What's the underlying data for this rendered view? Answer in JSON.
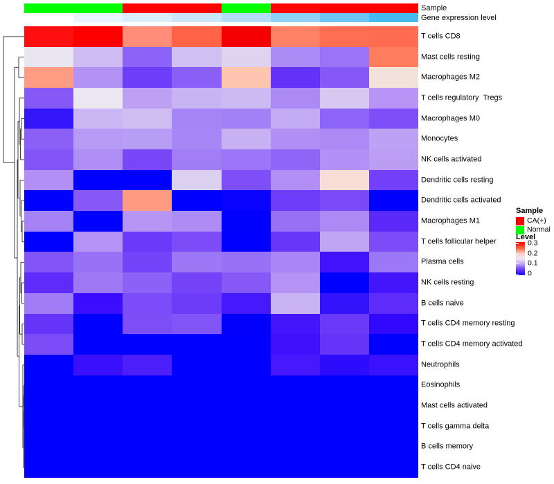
{
  "header": {
    "sample_label": "Sample",
    "gene_label": "Gene expression level"
  },
  "annotations": {
    "sample_colors": [
      "#00ff00",
      "#00ff00",
      "#ff0000",
      "#ff0000",
      "#00ff00",
      "#ff0000",
      "#ff0000",
      "#ff0000"
    ],
    "sample_groups": [
      "Normal",
      "Normal",
      "CA(+)",
      "CA(+)",
      "Normal",
      "CA(+)",
      "CA(+)",
      "CA(+)"
    ],
    "gene_expression_colors": [
      "#ffffff",
      "#e9f5fc",
      "#dbeefa",
      "#cbe5f9",
      "#b3dcf7",
      "#8fd0f5",
      "#6ec6f3",
      "#45bbf1"
    ]
  },
  "legend": {
    "sample": {
      "title": "Sample",
      "items": [
        {
          "label": "CA(+)",
          "color": "#ff0000"
        },
        {
          "label": "Normal",
          "color": "#00ff00"
        }
      ]
    },
    "level": {
      "title": "Level",
      "ticks": [
        "0.3",
        "0.2",
        "0.1",
        "0"
      ],
      "gradient": [
        "#fb0000 0%",
        "#ff6b4d 20%",
        "#fbd0c5 35%",
        "#efe9f2 50%",
        "#c4abf4 65%",
        "#7140f8 82%",
        "#1500fe 100%"
      ]
    }
  },
  "chart_data": {
    "type": "heatmap",
    "n_columns": 8,
    "column_groups": [
      "Normal",
      "Normal",
      "CA(+)",
      "CA(+)",
      "Normal",
      "CA(+)",
      "CA(+)",
      "CA(+)"
    ],
    "colormap": {
      "low": "#0000ff",
      "mid": "#ffffff",
      "high": "#ff0000",
      "domain": [
        0,
        0.3
      ],
      "white_point": 0.15
    },
    "legend_position": "right",
    "rows": [
      "T cells CD8",
      "Mast cells resting",
      "Macrophages M2",
      "T cells regulatory  Tregs",
      "Macrophages M0",
      "Monocytes",
      "NK cells activated",
      "Dendritic cells resting",
      "Dendritic cells activated",
      "Macrophages M1",
      "T cells follicular helper",
      "Plasma cells",
      "NK cells resting",
      "B cells naive",
      "T cells CD4 memory resting",
      "T cells CD4 memory activated",
      "Neutrophils",
      "Eosinophils",
      "Mast cells activated",
      "T cells gamma delta",
      "B cells memory",
      "T cells CD4 naive"
    ],
    "values": [
      [
        0.29,
        0.3,
        0.22,
        0.24,
        0.3,
        0.22,
        0.24,
        0.24
      ],
      [
        0.14,
        0.12,
        0.08,
        0.12,
        0.13,
        0.1,
        0.09,
        0.23
      ],
      [
        0.21,
        0.1,
        0.06,
        0.08,
        0.18,
        0.06,
        0.08,
        0.16
      ],
      [
        0.08,
        0.14,
        0.11,
        0.12,
        0.12,
        0.1,
        0.13,
        0.11
      ],
      [
        0.03,
        0.12,
        0.12,
        0.1,
        0.1,
        0.11,
        0.08,
        0.07
      ],
      [
        0.08,
        0.11,
        0.11,
        0.1,
        0.12,
        0.1,
        0.1,
        0.11
      ],
      [
        0.08,
        0.1,
        0.07,
        0.09,
        0.09,
        0.08,
        0.1,
        0.11
      ],
      [
        0.1,
        0.0,
        0.0,
        0.13,
        0.07,
        0.1,
        0.16,
        0.07
      ],
      [
        0.0,
        0.08,
        0.21,
        0.0,
        0.0,
        0.06,
        0.07,
        0.0
      ],
      [
        0.1,
        0.0,
        0.11,
        0.1,
        0.0,
        0.09,
        0.1,
        0.05
      ],
      [
        0.0,
        0.11,
        0.06,
        0.07,
        0.0,
        0.06,
        0.11,
        0.07
      ],
      [
        0.08,
        0.09,
        0.07,
        0.09,
        0.09,
        0.1,
        0.04,
        0.09
      ],
      [
        0.05,
        0.09,
        0.08,
        0.07,
        0.08,
        0.11,
        0.0,
        0.04
      ],
      [
        0.09,
        0.03,
        0.07,
        0.06,
        0.04,
        0.12,
        0.03,
        0.05
      ],
      [
        0.06,
        0.0,
        0.07,
        0.08,
        0.0,
        0.04,
        0.06,
        0.03
      ],
      [
        0.07,
        0.0,
        0.0,
        0.0,
        0.0,
        0.04,
        0.06,
        0.0
      ],
      [
        0.0,
        0.03,
        0.04,
        0.0,
        0.0,
        0.04,
        0.03,
        0.03
      ],
      [
        0.0,
        0.0,
        0.0,
        0.0,
        0.0,
        0.0,
        0.0,
        0.0
      ],
      [
        0.0,
        0.0,
        0.0,
        0.0,
        0.0,
        0.0,
        0.0,
        0.0
      ],
      [
        0.0,
        0.0,
        0.0,
        0.0,
        0.0,
        0.0,
        0.0,
        0.0
      ],
      [
        0.0,
        0.0,
        0.0,
        0.0,
        0.0,
        0.0,
        0.0,
        0.0
      ],
      [
        0.0,
        0.0,
        0.0,
        0.0,
        0.0,
        0.0,
        0.0,
        0.0
      ]
    ],
    "cell_colors": [
      [
        "#ff0f0f",
        "#ff0000",
        "#ff8d77",
        "#ff6347",
        "#f40000",
        "#ff8266",
        "#ff6d52",
        "#ff6c50"
      ],
      [
        "#eae6ef",
        "#cdbbf2",
        "#8c63f7",
        "#cfc0f2",
        "#ded4f0",
        "#ab8bf6",
        "#9a74f6",
        "#ff7c5e"
      ],
      [
        "#ff9c83",
        "#b292f5",
        "#6d3ef9",
        "#8a5ff7",
        "#ffc5ae",
        "#6333f9",
        "#8659f7",
        "#f3e1dc"
      ],
      [
        "#8659f7",
        "#ece8f1",
        "#bd9ff4",
        "#c9b4f3",
        "#cdbaf3",
        "#ab8af6",
        "#d7c8f1",
        "#b794f5"
      ],
      [
        "#3317fa",
        "#cbb7f3",
        "#d0bef2",
        "#a584f6",
        "#a281f6",
        "#c3aaf4",
        "#8c64f7",
        "#7e4ff8"
      ],
      [
        "#8b60f7",
        "#b79af5",
        "#b89df5",
        "#a786f6",
        "#c7b1f3",
        "#b08ff5",
        "#ab8af6",
        "#bca1f4"
      ],
      [
        "#8355f7",
        "#ae8ef5",
        "#7747f8",
        "#a17ef6",
        "#9b76f6",
        "#8d65f7",
        "#b290f5",
        "#bb9ef4"
      ],
      [
        "#b18ff5",
        "#0000ff",
        "#0000ff",
        "#dcd0f0",
        "#7e4ff8",
        "#b18ff5",
        "#f8ddd7",
        "#7140f8"
      ],
      [
        "#0000ff",
        "#8659f7",
        "#ff9b80",
        "#0000ff",
        "#0803fe",
        "#6d3df9",
        "#7a4af8",
        "#0000ff"
      ],
      [
        "#a583f6",
        "#0000ff",
        "#b795f5",
        "#ad8cf5",
        "#0000fd",
        "#9770f6",
        "#ab8af6",
        "#5b28fa"
      ],
      [
        "#0000ff",
        "#b592f5",
        "#6b3af9",
        "#7c4cf8",
        "#0000fe",
        "#6636f9",
        "#c0a5f4",
        "#7c4cf8"
      ],
      [
        "#8355f7",
        "#9872f6",
        "#7243f8",
        "#9c77f6",
        "#9872f6",
        "#a986f6",
        "#4312fc",
        "#9c77f6"
      ],
      [
        "#5d2bfa",
        "#9d79f6",
        "#8b61f7",
        "#7443f8",
        "#8659f7",
        "#b593f5",
        "#0000ff",
        "#4315fb"
      ],
      [
        "#a07cf6",
        "#3a0efc",
        "#7c4cf8",
        "#6c3cf9",
        "#4419fb",
        "#c9b3f3",
        "#3312fc",
        "#5d2bfa"
      ],
      [
        "#6434f9",
        "#0000ff",
        "#7d4ef8",
        "#8155f7",
        "#0000fb",
        "#4315fb",
        "#6b3af9",
        "#3208fd"
      ],
      [
        "#7c4cf8",
        "#0000ff",
        "#0000ff",
        "#0000ff",
        "#0000ff",
        "#3f10fc",
        "#6434f9",
        "#0000ff"
      ],
      [
        "#0000ff",
        "#3a10fc",
        "#4c1ffb",
        "#0000ff",
        "#0000ff",
        "#4718fb",
        "#2d0cfd",
        "#3911fc"
      ],
      [
        "#0000ff",
        "#0000ff",
        "#0000ff",
        "#0000ff",
        "#0000ff",
        "#0000ff",
        "#0000ff",
        "#0000ff"
      ],
      [
        "#0000ff",
        "#0000ff",
        "#0000ff",
        "#0000ff",
        "#0000ff",
        "#0000ff",
        "#0000ff",
        "#0000ff"
      ],
      [
        "#0000ff",
        "#0000ff",
        "#0000ff",
        "#0000ff",
        "#0000ff",
        "#0000ff",
        "#0000ff",
        "#0000ff"
      ],
      [
        "#0000ff",
        "#0000ff",
        "#0000ff",
        "#0000ff",
        "#0000ff",
        "#0000ff",
        "#0000ff",
        "#0000ff"
      ],
      [
        "#0000ff",
        "#0000ff",
        "#0000ff",
        "#0000ff",
        "#0000ff",
        "#0000ff",
        "#0000ff",
        "#0000ff"
      ]
    ],
    "row_dendrogram_merges": [
      [
        "r2",
        "r3",
        27
      ],
      [
        "r5",
        "r6",
        31
      ],
      [
        "m2",
        "r7",
        29.5
      ],
      [
        "r4",
        "m3",
        28
      ],
      [
        "r10",
        "r11",
        32
      ],
      [
        "r9",
        "m5",
        30.5
      ],
      [
        "r8",
        "m6",
        29
      ],
      [
        "m4",
        "m7",
        26
      ],
      [
        "r13",
        "r14",
        31.5
      ],
      [
        "r12",
        "m9",
        30
      ],
      [
        "r15",
        "r16",
        32
      ],
      [
        "m10",
        "m11",
        28.5
      ],
      [
        "r18",
        "r19",
        34.6
      ],
      [
        "m13",
        "r20",
        34.2
      ],
      [
        "m14",
        "r21",
        33.9
      ],
      [
        "m15",
        "r22",
        33.6
      ],
      [
        "r17",
        "m16",
        33
      ],
      [
        "m12",
        "m17",
        27.5
      ],
      [
        "m8",
        "m18",
        25
      ],
      [
        "m1",
        "m19",
        21
      ],
      [
        "r1",
        "m20",
        5
      ]
    ]
  }
}
